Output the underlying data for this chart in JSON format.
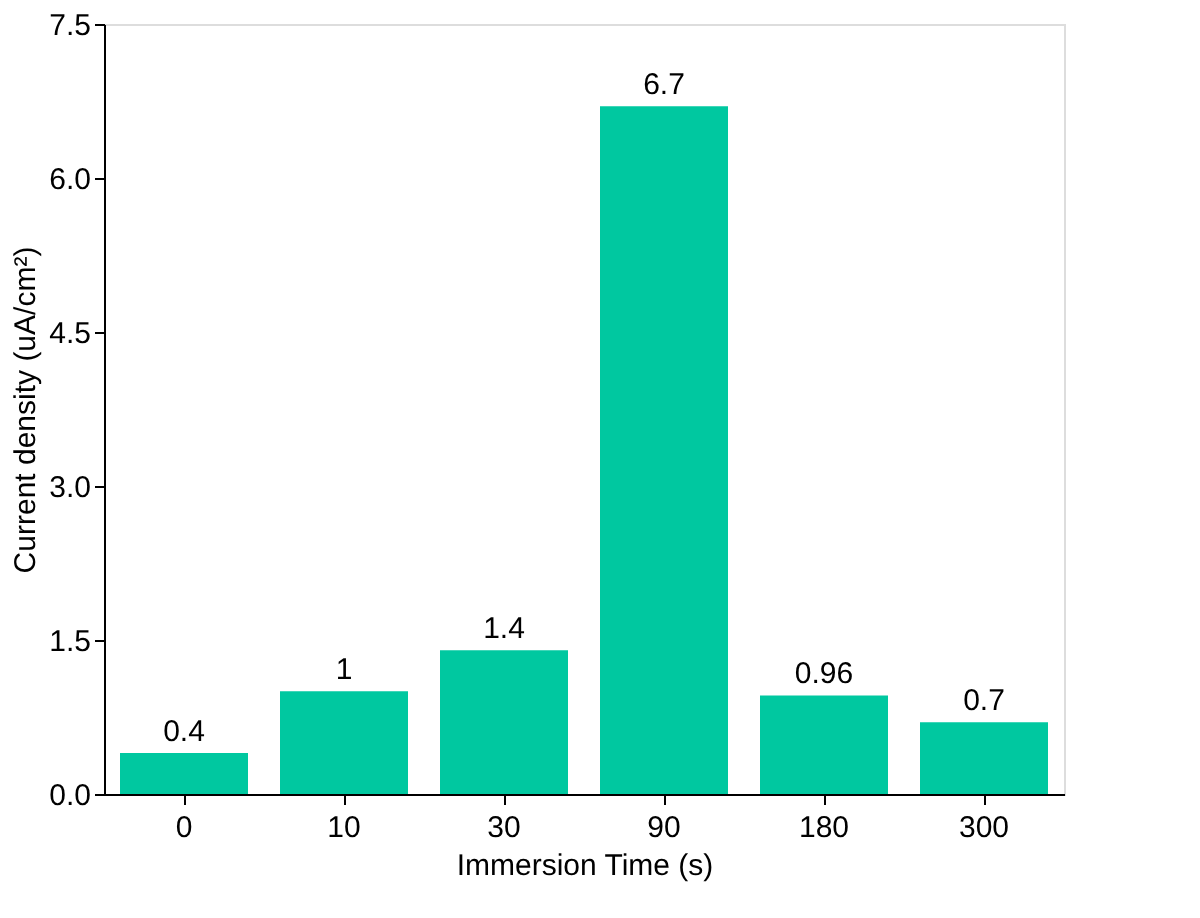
{
  "chart_data": {
    "type": "bar",
    "xlabel": "Immersion Time (s)",
    "ylabel": "Current density (uA/cm²)",
    "categories": [
      "0",
      "10",
      "30",
      "90",
      "180",
      "300"
    ],
    "series": [
      {
        "color": "#00c8a0",
        "values": [
          0.4,
          1,
          1.4,
          6.7,
          0.96,
          0.7
        ]
      }
    ],
    "ylim": [
      0,
      7.5
    ],
    "yticks": [
      {
        "value": 0,
        "label": "0.0"
      },
      {
        "value": 1.5,
        "label": "1.5"
      },
      {
        "value": 3,
        "label": "3.0"
      },
      {
        "value": 4.5,
        "label": "4.5"
      },
      {
        "value": 6,
        "label": "6.0"
      },
      {
        "value": 7.5,
        "label": "7.5"
      }
    ],
    "data_labels": true,
    "grid": false
  }
}
